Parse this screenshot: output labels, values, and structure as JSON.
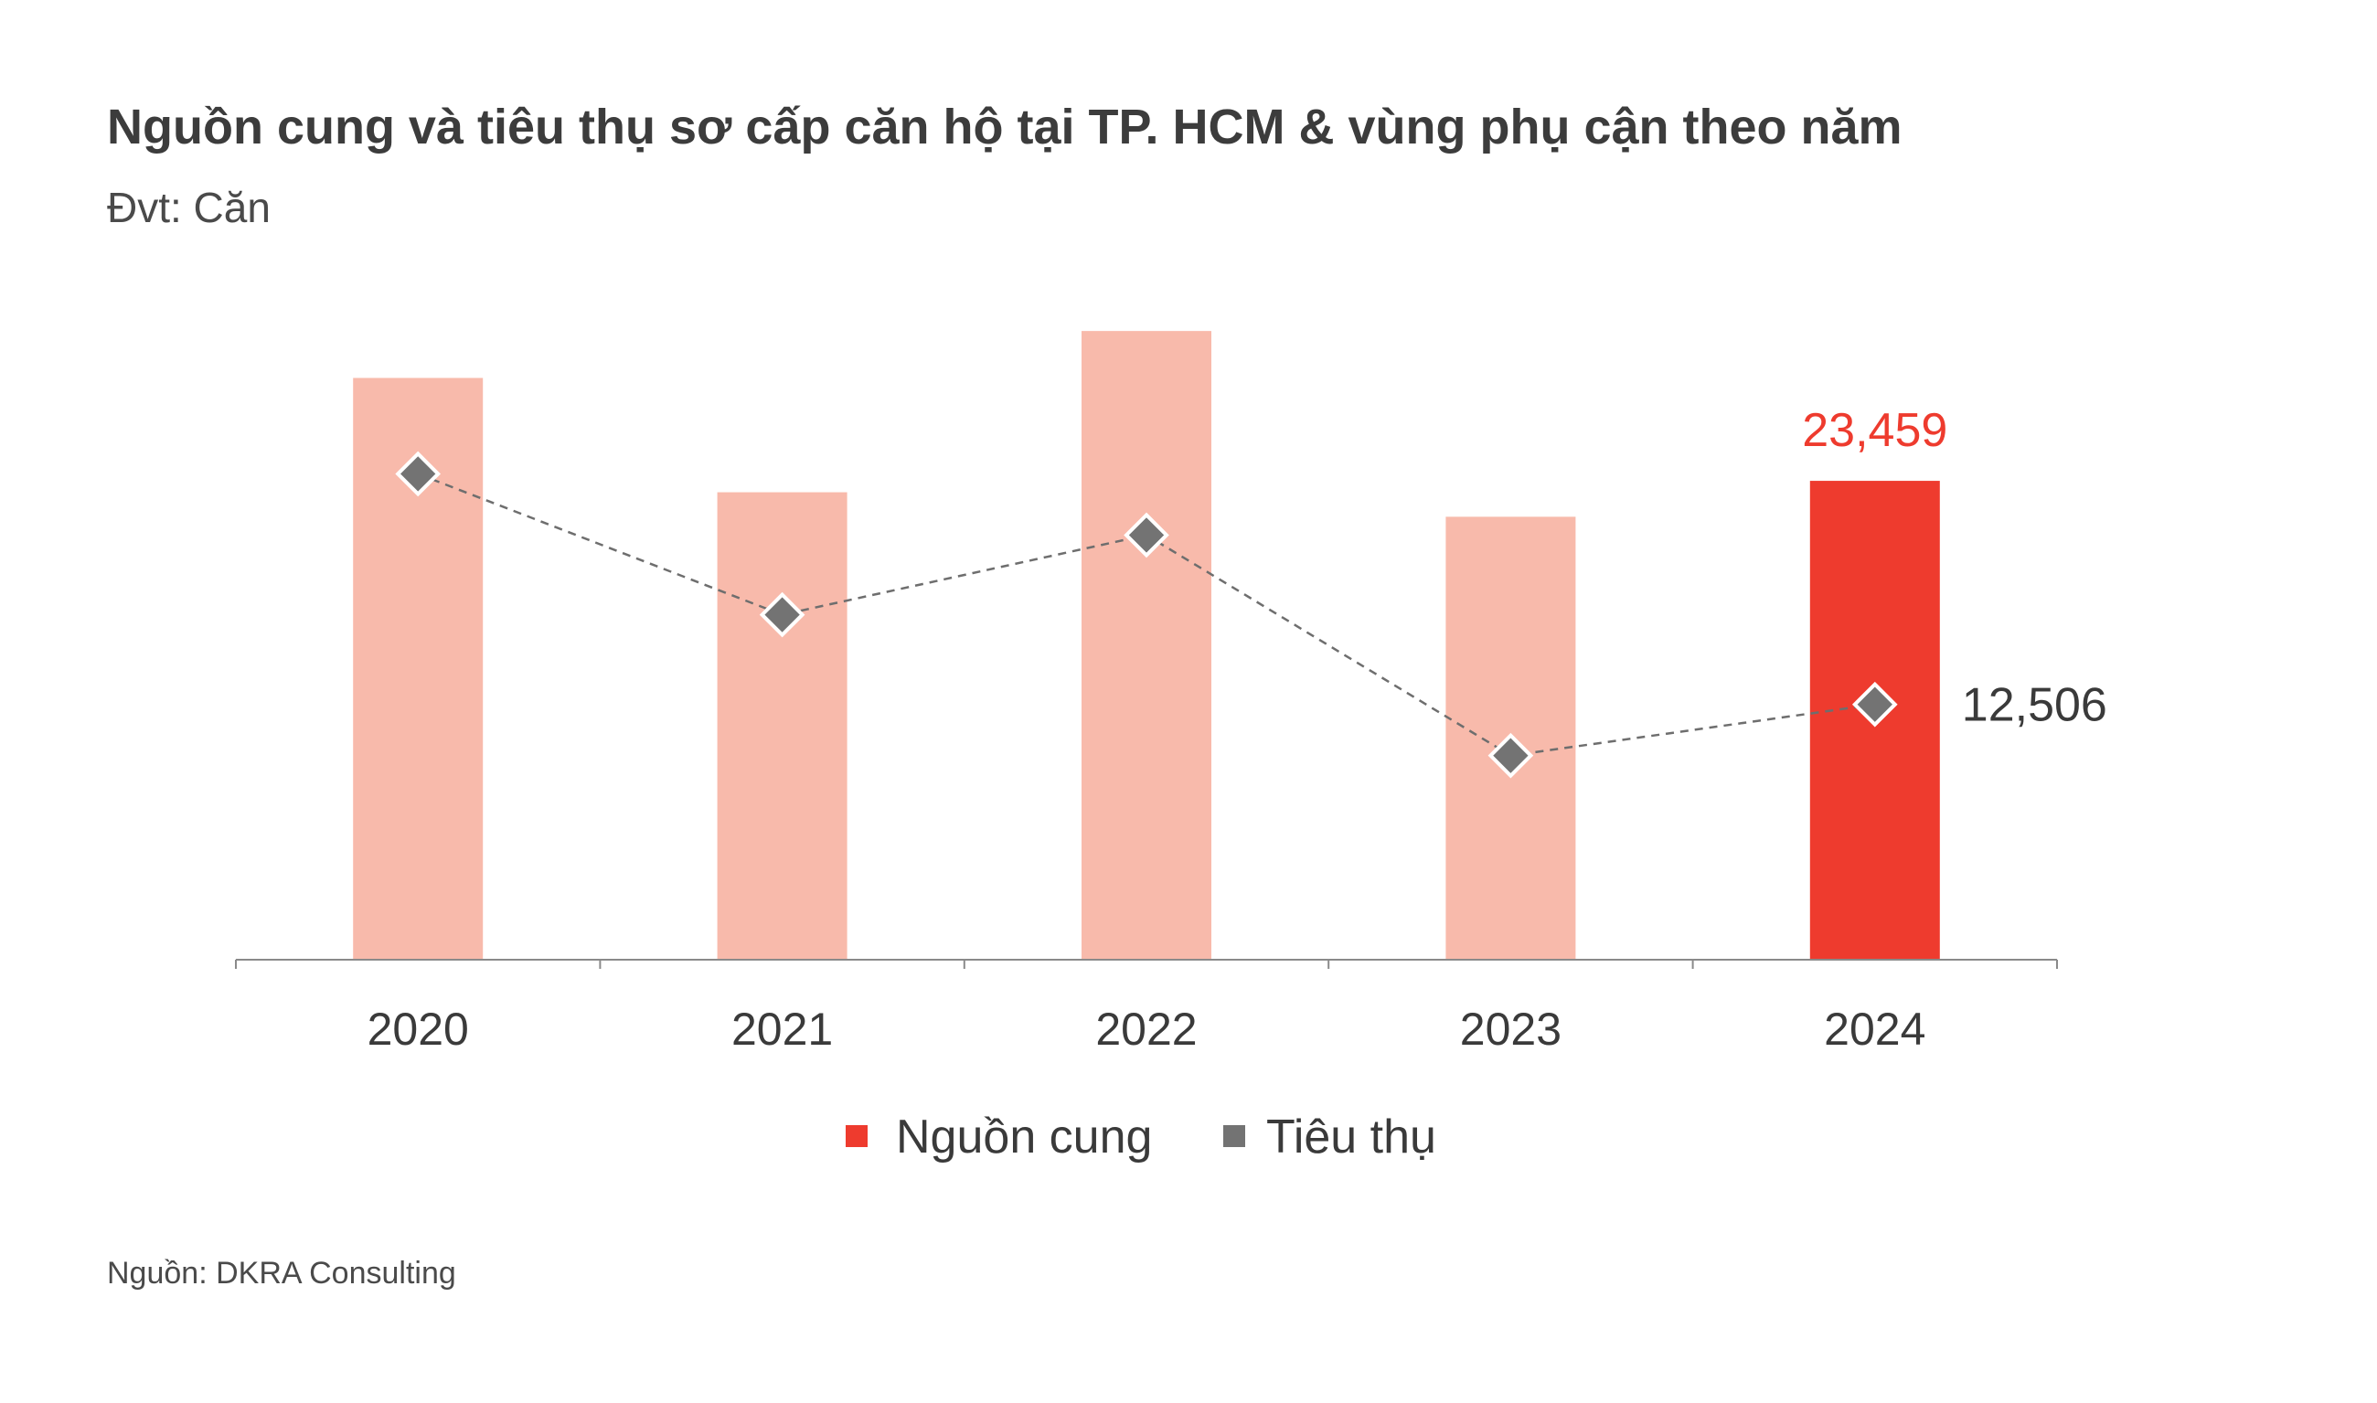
{
  "header": {
    "title": "Nguồn cung và tiêu thụ sơ cấp căn hộ tại TP. HCM & vùng phụ cận theo năm",
    "subtitle": "Đvt: Căn"
  },
  "footer": {
    "source": "Nguồn: DKRA Consulting"
  },
  "colors": {
    "supply_past": "#f8baab",
    "supply_highlight": "#ee3b2e",
    "consumption": "#737373",
    "axis": "#8a8a8a"
  },
  "chart_data": {
    "type": "bar",
    "categories": [
      "2020",
      "2021",
      "2022",
      "2023",
      "2024"
    ],
    "ylim": [
      0,
      30000
    ],
    "grid": false,
    "legend_position": "bottom-center",
    "series": [
      {
        "name": "Nguồn cung",
        "type": "bar",
        "values": [
          28500,
          22900,
          30800,
          21700,
          23459
        ],
        "highlight_index": 4,
        "data_label": "23,459"
      },
      {
        "name": "Tiêu thụ",
        "type": "line",
        "marker": "diamond",
        "line_style": "dashed",
        "values": [
          23800,
          16900,
          20800,
          10000,
          12506
        ],
        "data_label": "12,506"
      }
    ]
  }
}
